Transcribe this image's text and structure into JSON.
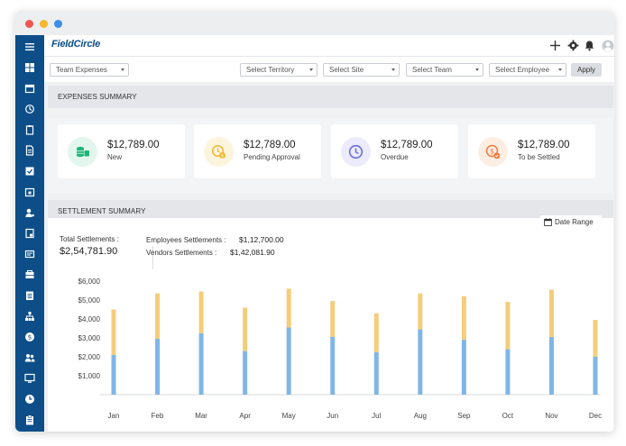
{
  "app": {
    "brand": "FieldCircle"
  },
  "filters": {
    "report_type": "Team Expenses",
    "territory": "Select Territory",
    "site": "Select Site",
    "team": "Select Team",
    "employee": "Select Employee",
    "apply_label": "Apply"
  },
  "expenses_summary": {
    "title": "EXPENSES SUMMARY",
    "cards": [
      {
        "amount": "$12,789.00",
        "label": "New",
        "icon": "cash-stack-icon",
        "color": "#1fb57a",
        "bg": "#e3f6ee"
      },
      {
        "amount": "$12,789.00",
        "label": "Pending Approval",
        "icon": "clock-coin-icon",
        "color": "#f1b731",
        "bg": "#fdf4de"
      },
      {
        "amount": "$12,789.00",
        "label": "Overdue",
        "icon": "clock-icon",
        "color": "#6c6fd6",
        "bg": "#ebebfb"
      },
      {
        "amount": "$12,789.00",
        "label": "To be Settled",
        "icon": "dollar-check-icon",
        "color": "#ef7a3c",
        "bg": "#fdeee4"
      }
    ]
  },
  "settlement_summary": {
    "title": "SETTLEMENT SUMMARY",
    "date_range_label": "Date Range",
    "total_label": "Total Settlements :",
    "total_value": "$2,54,781.90",
    "employees_label": "Employees Settlements :",
    "employees_value": "$1,12,700.00",
    "vendors_label": "Vendors Settlements :",
    "vendors_value": "$1,42,081.90"
  },
  "chart_data": {
    "type": "bar",
    "stacked": true,
    "categories": [
      "Jan",
      "Feb",
      "Mar",
      "Apr",
      "May",
      "Jun",
      "Jul",
      "Aug",
      "Sep",
      "Oct",
      "Nov",
      "Dec"
    ],
    "series": [
      {
        "color": "#7fb6e6",
        "values": [
          2100,
          2950,
          3250,
          2300,
          3550,
          3050,
          2250,
          3450,
          2900,
          2400,
          3050,
          2000
        ]
      },
      {
        "color": "#f4cd7b",
        "values": [
          2400,
          2400,
          2200,
          2300,
          2050,
          1900,
          2050,
          1900,
          2300,
          2500,
          2500,
          1950
        ]
      }
    ],
    "yticks": [
      1000,
      2000,
      3000,
      4000,
      5000,
      6000
    ],
    "ytick_labels": [
      "$1,000",
      "$2,000",
      "$3,000",
      "$4,000",
      "$5,000",
      "$6,000"
    ],
    "ylim": [
      0,
      6000
    ],
    "grid": false
  }
}
